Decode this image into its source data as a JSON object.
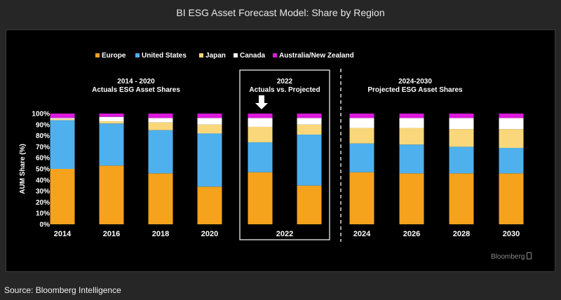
{
  "window": {
    "title": "BI ESG Asset Forecast Model: Share by Region",
    "source": "Source: Bloomberg Intelligence",
    "brand": "Bloomberg"
  },
  "chart_data": {
    "type": "bar",
    "stacked": true,
    "ylabel": "AUM Share (%)",
    "ylim": [
      0,
      100
    ],
    "y_ticks": [
      "0%",
      "10%",
      "20%",
      "30%",
      "40%",
      "50%",
      "60%",
      "70%",
      "80%",
      "90%",
      "100%"
    ],
    "grid": false,
    "legend_position": "top-left",
    "categories": [
      "2014",
      "2016",
      "2018",
      "2020",
      "2022 Actuals",
      "2022 Projected",
      "2024",
      "2026",
      "2028",
      "2030"
    ],
    "x_tick_labels": [
      "2014",
      "2016",
      "2018",
      "2020",
      "2022",
      "2024",
      "2026",
      "2028",
      "2030"
    ],
    "series": [
      {
        "name": "Europe",
        "color": "#f5a21d",
        "values": [
          50,
          53,
          46,
          34,
          47,
          35,
          47,
          46,
          46,
          46
        ]
      },
      {
        "name": "United States",
        "color": "#4fb0ee",
        "values": [
          44,
          38,
          39,
          48,
          27,
          46,
          26,
          26,
          24,
          23
        ]
      },
      {
        "name": "Japan",
        "color": "#f9d77a",
        "values": [
          1,
          2,
          7,
          8,
          14,
          9,
          14,
          15,
          16,
          17
        ]
      },
      {
        "name": "Canada",
        "color": "#ffffff",
        "values": [
          1,
          4,
          4,
          6,
          8,
          6,
          9,
          9,
          10,
          10
        ]
      },
      {
        "name": "Australia/New Zealand",
        "color": "#dc19dc",
        "values": [
          4,
          3,
          4,
          4,
          4,
          4,
          4,
          4,
          4,
          4
        ]
      }
    ],
    "annotations": {
      "left_heading": "2014 - 2020",
      "left_subheading": "Actuals ESG Asset Shares",
      "mid_heading": "2022",
      "mid_subheading": "Actuals vs. Projected",
      "right_heading": "2024-2030",
      "right_subheading": "Projected ESG Asset Shares"
    }
  }
}
